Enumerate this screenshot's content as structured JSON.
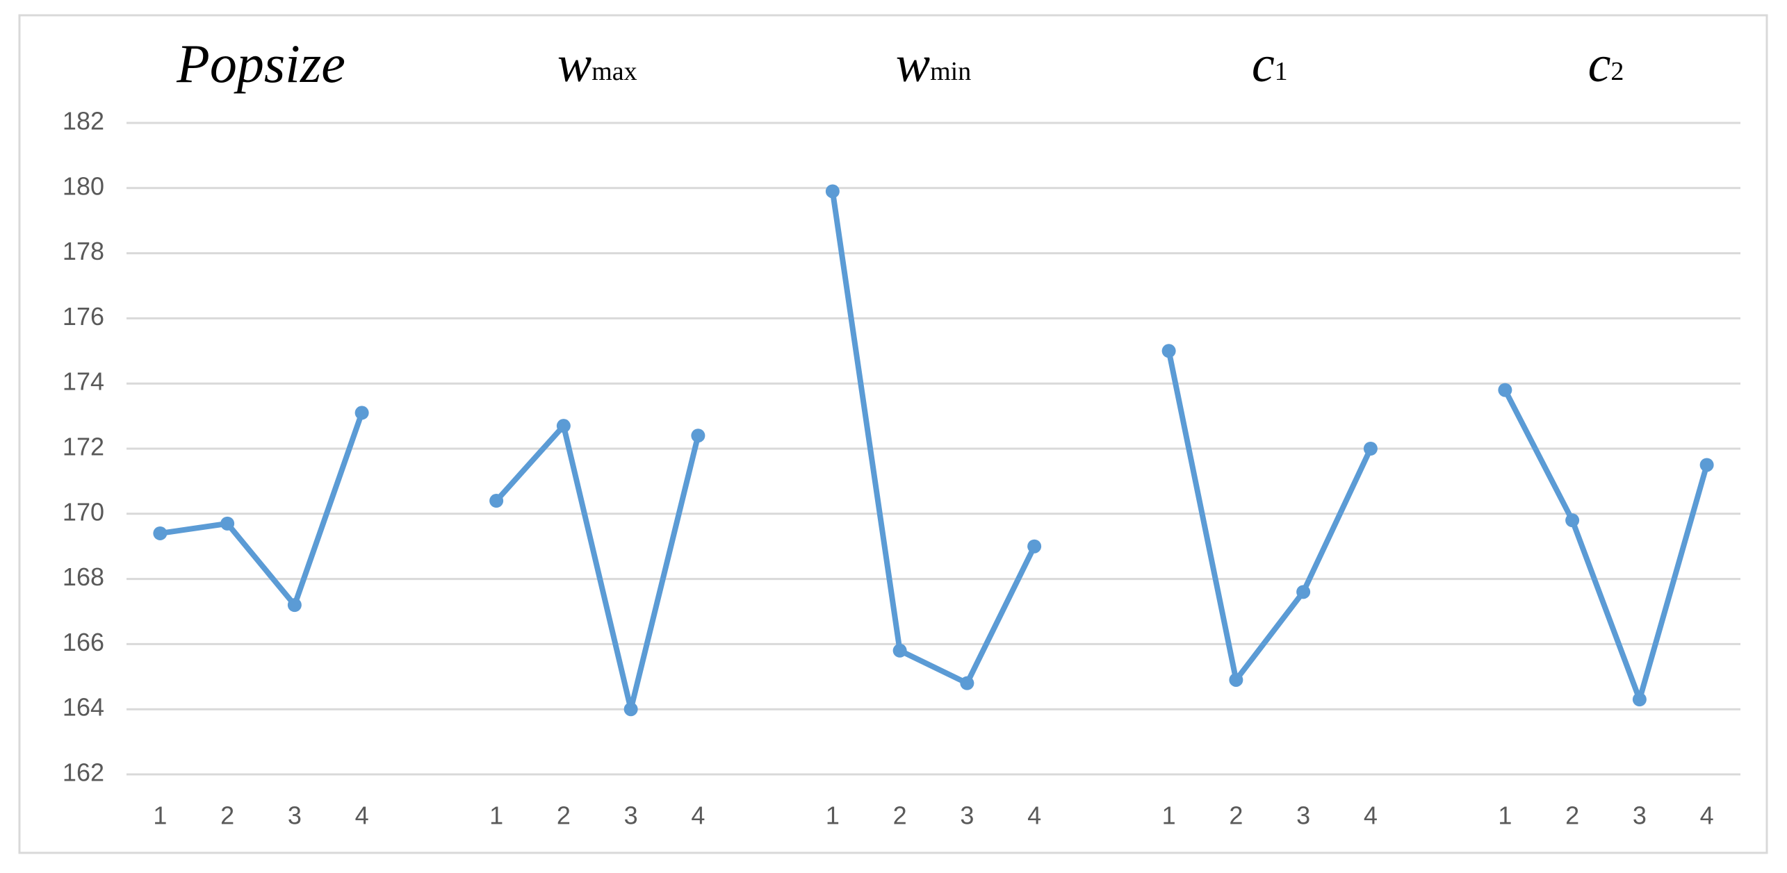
{
  "chart_data": {
    "type": "line",
    "categories": [
      "1",
      "2",
      "3",
      "4",
      null,
      "1",
      "2",
      "3",
      "4",
      null,
      "1",
      "2",
      "3",
      "4",
      null,
      "1",
      "2",
      "3",
      "4",
      null,
      "1",
      "2",
      "3",
      "4"
    ],
    "series": [
      {
        "color": "#5b9bd5",
        "values": [
          169.4,
          169.7,
          167.2,
          173.1,
          null,
          170.4,
          172.7,
          164.0,
          172.4,
          null,
          179.9,
          165.8,
          164.8,
          169.0,
          null,
          175.0,
          164.9,
          167.6,
          172.0,
          null,
          173.8,
          169.8,
          164.3,
          171.5
        ]
      }
    ],
    "annotations": [
      {
        "text": "Popsize"
      },
      {
        "text": "w",
        "sub": "max"
      },
      {
        "text": "w",
        "sub": "min"
      },
      {
        "text": "c",
        "sub": "1"
      },
      {
        "text": "c",
        "sub": "2"
      }
    ],
    "ylim": [
      162,
      182
    ],
    "yticks": [
      162,
      164,
      166,
      168,
      170,
      172,
      174,
      176,
      178,
      180,
      182
    ],
    "grid": true
  }
}
